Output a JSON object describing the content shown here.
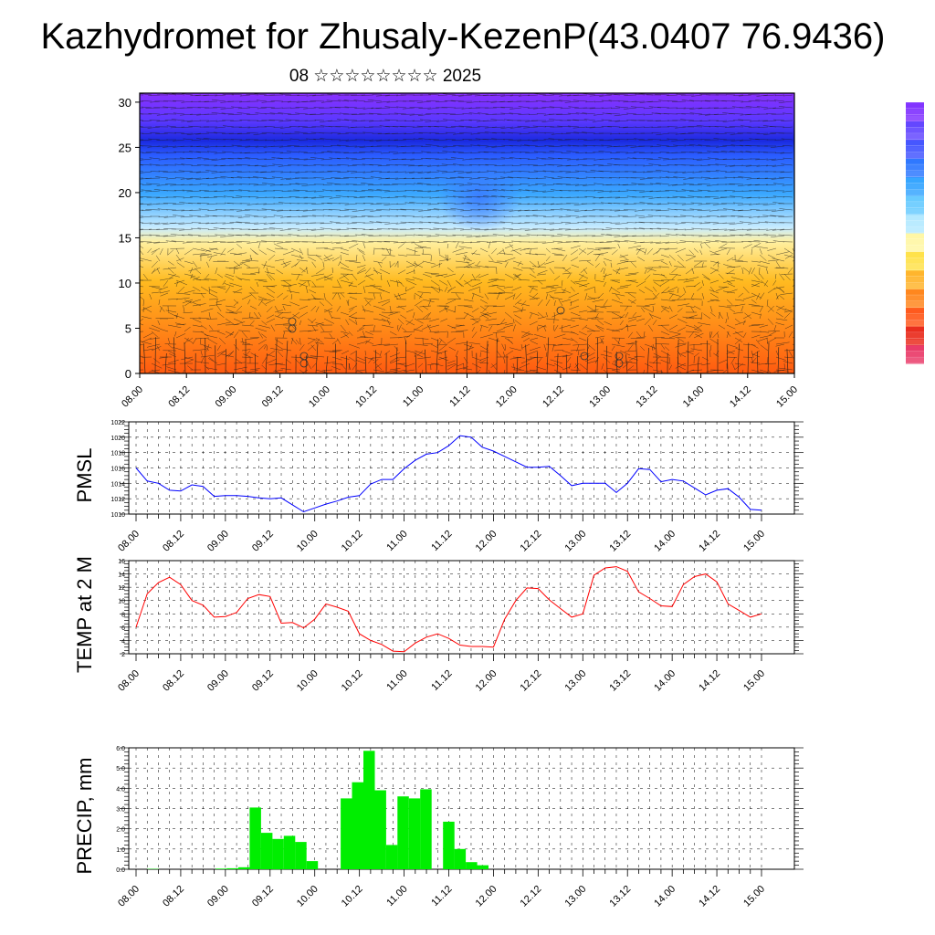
{
  "title": "Kazhydromet for Zhusaly-KezenP(43.0407 76.9436)",
  "subtitle": "08 ☆☆☆☆☆☆☆☆ 2025",
  "colors": {
    "pmsl": "#0000ff",
    "temp": "#ff0000",
    "precip": "#00ee00",
    "border": "#000000",
    "grid": "#000000"
  },
  "chart_data": [
    {
      "type": "heatmap",
      "description_ylabel": "",
      "xticks": [
        "08.00",
        "08.12",
        "09.00",
        "09.12",
        "10.00",
        "10.12",
        "11.00",
        "11.12",
        "12.00",
        "12.12",
        "13.00",
        "13.12",
        "14.00",
        "14.12",
        "15.00"
      ],
      "yticks": [
        "0",
        "5",
        "10",
        "15",
        "20",
        "25",
        "30"
      ],
      "ylim": [
        0,
        31
      ],
      "colorbar_colors": [
        "#7a28ff",
        "#5a3cff",
        "#3a4cff",
        "#2270ff",
        "#2aa0ff",
        "#60c8ff",
        "#b0e8ff",
        "#fff6a0",
        "#ffe040",
        "#ffb020",
        "#ff8010",
        "#ff5010",
        "#e82010",
        "#e83060"
      ],
      "legend_position": "right"
    },
    {
      "type": "line",
      "ylabel": "PMSL",
      "xticks": [
        "08.00",
        "08.12",
        "09.00",
        "09.12",
        "10.00",
        "10.12",
        "11.00",
        "11.12",
        "12.00",
        "12.12",
        "13.00",
        "13.12",
        "14.00",
        "14.12",
        "15.00"
      ],
      "yticks": [
        "1010",
        "1012",
        "1014",
        "1016",
        "1018",
        "1020",
        "1022"
      ],
      "ylim": [
        1010,
        1022
      ],
      "series": [
        {
          "values": [
            1016.0,
            1014.3,
            1014.0,
            1013.1,
            1013.0,
            1013.8,
            1013.6,
            1012.3,
            1012.4,
            1012.4,
            1012.3,
            1012.1,
            1012.0,
            1012.1,
            1011.2,
            1010.3,
            1010.8,
            1011.3,
            1011.7,
            1012.2,
            1012.4,
            1013.9,
            1014.5,
            1014.5,
            1015.9,
            1017.0,
            1017.8,
            1018.0,
            1018.9,
            1020.2,
            1020.0,
            1018.7,
            1018.2,
            1017.5,
            1016.8,
            1016.1,
            1016.1,
            1016.2,
            1015.0,
            1013.7,
            1014.0,
            1014.0,
            1014.0,
            1012.8,
            1014.0,
            1015.9,
            1015.8,
            1014.2,
            1014.5,
            1014.3,
            1013.4,
            1012.5,
            1013.1,
            1013.3,
            1012.2,
            1010.6,
            1010.5
          ]
        }
      ]
    },
    {
      "type": "line",
      "ylabel": "TEMP at 2 M",
      "xticks": [
        "08.00",
        "08.12",
        "09.00",
        "09.12",
        "10.00",
        "10.12",
        "11.00",
        "11.12",
        "12.00",
        "12.12",
        "13.00",
        "13.12",
        "14.00",
        "14.12",
        "15.00"
      ],
      "yticks": [
        "2",
        "4",
        "6",
        "8",
        "10",
        "12",
        "14",
        "16"
      ],
      "ylim": [
        2,
        16
      ],
      "series": [
        {
          "values": [
            6.0,
            11.0,
            12.7,
            13.5,
            12.4,
            10.0,
            9.3,
            7.5,
            7.6,
            8.2,
            10.3,
            10.9,
            10.6,
            6.6,
            6.7,
            5.9,
            7.2,
            9.5,
            9.0,
            8.4,
            5.0,
            4.0,
            3.4,
            2.4,
            2.3,
            3.6,
            4.5,
            5.0,
            4.3,
            3.3,
            3.1,
            3.1,
            3.0,
            7.2,
            10.0,
            11.9,
            11.8,
            10.1,
            8.8,
            7.5,
            8.0,
            13.8,
            14.9,
            15.1,
            14.4,
            11.3,
            10.3,
            9.2,
            9.1,
            12.4,
            13.6,
            14.0,
            12.8,
            9.5,
            8.5,
            7.5,
            8.0
          ]
        }
      ]
    },
    {
      "type": "bar",
      "ylabel": "PRECIP, mm",
      "xticks": [
        "08.00",
        "08.12",
        "09.00",
        "09.12",
        "10.00",
        "10.12",
        "11.00",
        "11.12",
        "12.00",
        "12.12",
        "13.00",
        "13.12",
        "14.00",
        "14.12",
        "15.00"
      ],
      "yticks": [
        "0.0",
        "1.0",
        "2.0",
        "3.0",
        "4.0",
        "5.0",
        "6.0"
      ],
      "ylim": [
        0,
        6
      ],
      "values": [
        0.0,
        0.02,
        0.0,
        0.0,
        0.0,
        0.0,
        0.0,
        0.03,
        0.05,
        0.1,
        3.05,
        1.8,
        1.5,
        1.65,
        1.35,
        0.4,
        0.0,
        0.0,
        3.5,
        4.3,
        5.85,
        3.9,
        1.2,
        3.6,
        3.5,
        3.95,
        0.0,
        2.35,
        1.0,
        0.35,
        0.2,
        0.0,
        0.0,
        0.0,
        0.0,
        0.0,
        0.0,
        0.0,
        0.0,
        0.0,
        0.0,
        0.0,
        0.0,
        0.0,
        0.0,
        0.0,
        0.0,
        0.0,
        0.0,
        0.0,
        0.0,
        0.0,
        0.0,
        0.0,
        0.0,
        0.0
      ]
    }
  ]
}
